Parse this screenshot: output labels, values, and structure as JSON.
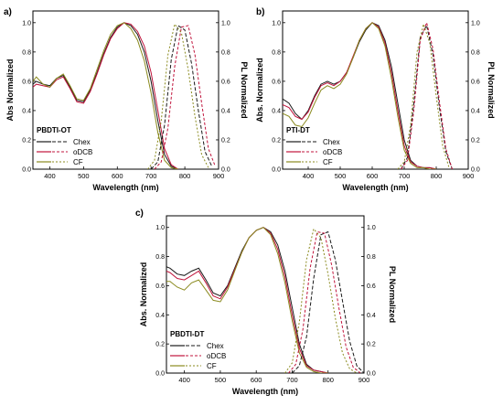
{
  "figure": {
    "colors": {
      "Chex": "#1a1a1a",
      "oDCB": "#c0143c",
      "CF": "#8a8a1e"
    },
    "legend_entries": [
      "Chex",
      "oDCB",
      "CF"
    ]
  },
  "chart_data": [
    {
      "panel_label": "a)",
      "type": "line",
      "title": "PBDTI-OT",
      "xlabel": "Wavelength (nm)",
      "ylabel_left": "Abs Normalized",
      "ylabel_right": "PL Normalized",
      "xlim": [
        350,
        900
      ],
      "ylim": [
        0,
        1.08
      ],
      "xticks": [
        400,
        500,
        600,
        700,
        800,
        900
      ],
      "yticks": [
        0.0,
        0.2,
        0.4,
        0.6,
        0.8,
        1.0
      ],
      "legend_position": "bottom-left",
      "grid": false,
      "series": [
        {
          "name": "Chex",
          "kind": "abs",
          "style": "solid",
          "x": [
            350,
            360,
            380,
            400,
            420,
            440,
            460,
            480,
            500,
            520,
            540,
            560,
            580,
            600,
            620,
            640,
            660,
            680,
            700,
            720,
            740,
            760,
            780
          ],
          "y": [
            0.58,
            0.6,
            0.58,
            0.57,
            0.62,
            0.64,
            0.56,
            0.47,
            0.46,
            0.54,
            0.66,
            0.79,
            0.9,
            0.97,
            1.0,
            0.98,
            0.92,
            0.8,
            0.6,
            0.33,
            0.1,
            0.02,
            0.0
          ]
        },
        {
          "name": "oDCB",
          "kind": "abs",
          "style": "solid",
          "x": [
            350,
            360,
            380,
            400,
            420,
            440,
            460,
            480,
            500,
            520,
            540,
            560,
            580,
            600,
            620,
            640,
            660,
            680,
            700,
            720,
            740,
            760,
            780
          ],
          "y": [
            0.56,
            0.58,
            0.57,
            0.56,
            0.61,
            0.63,
            0.55,
            0.46,
            0.45,
            0.53,
            0.65,
            0.78,
            0.89,
            0.96,
            1.0,
            0.99,
            0.94,
            0.84,
            0.66,
            0.4,
            0.14,
            0.03,
            0.0
          ]
        },
        {
          "name": "CF",
          "kind": "abs",
          "style": "solid",
          "x": [
            350,
            360,
            380,
            400,
            420,
            440,
            460,
            480,
            500,
            520,
            540,
            560,
            580,
            600,
            620,
            640,
            660,
            680,
            700,
            720,
            740,
            760,
            780
          ],
          "y": [
            0.6,
            0.63,
            0.58,
            0.56,
            0.62,
            0.65,
            0.57,
            0.48,
            0.47,
            0.55,
            0.68,
            0.81,
            0.92,
            0.98,
            1.0,
            0.96,
            0.88,
            0.74,
            0.52,
            0.25,
            0.06,
            0.01,
            0.0
          ]
        },
        {
          "name": "Chex",
          "kind": "pl",
          "style": "dashed",
          "x": [
            700,
            720,
            740,
            760,
            780,
            800,
            820,
            840,
            860,
            880
          ],
          "y": [
            0.0,
            0.05,
            0.3,
            0.75,
            0.98,
            0.95,
            0.72,
            0.4,
            0.12,
            0.02
          ]
        },
        {
          "name": "oDCB",
          "kind": "pl",
          "style": "dashed",
          "x": [
            710,
            730,
            750,
            770,
            790,
            810,
            830,
            850,
            870,
            890
          ],
          "y": [
            0.0,
            0.05,
            0.28,
            0.7,
            0.97,
            0.98,
            0.78,
            0.45,
            0.14,
            0.02
          ]
        },
        {
          "name": "CF",
          "kind": "pl",
          "style": "dashed",
          "x": [
            690,
            710,
            730,
            750,
            770,
            790,
            810,
            830,
            850,
            870
          ],
          "y": [
            0.0,
            0.06,
            0.33,
            0.78,
            0.99,
            0.93,
            0.68,
            0.36,
            0.1,
            0.01
          ]
        }
      ]
    },
    {
      "panel_label": "b)",
      "type": "line",
      "title": "PTI-DT",
      "xlabel": "Wavelength (nm)",
      "ylabel_left": "Abs. Normalized",
      "ylabel_right": "PL Normalized",
      "xlim": [
        320,
        900
      ],
      "ylim": [
        0,
        1.08
      ],
      "xticks": [
        400,
        500,
        600,
        700,
        800,
        900
      ],
      "yticks": [
        0.0,
        0.2,
        0.4,
        0.6,
        0.8,
        1.0
      ],
      "legend_position": "bottom-left",
      "grid": false,
      "series": [
        {
          "name": "Chex",
          "kind": "abs",
          "style": "solid",
          "x": [
            320,
            340,
            360,
            380,
            400,
            420,
            440,
            460,
            480,
            500,
            520,
            540,
            560,
            580,
            600,
            620,
            640,
            660,
            680,
            700,
            720,
            740,
            760,
            780,
            800
          ],
          "y": [
            0.48,
            0.45,
            0.38,
            0.34,
            0.4,
            0.5,
            0.58,
            0.6,
            0.58,
            0.6,
            0.66,
            0.76,
            0.87,
            0.95,
            1.0,
            0.98,
            0.88,
            0.7,
            0.45,
            0.2,
            0.06,
            0.02,
            0.01,
            0.01,
            0.0
          ]
        },
        {
          "name": "oDCB",
          "kind": "abs",
          "style": "solid",
          "x": [
            320,
            340,
            360,
            380,
            400,
            420,
            440,
            460,
            480,
            500,
            520,
            540,
            560,
            580,
            600,
            620,
            640,
            660,
            680,
            700,
            720,
            740,
            760,
            780,
            800
          ],
          "y": [
            0.44,
            0.42,
            0.36,
            0.34,
            0.39,
            0.49,
            0.57,
            0.59,
            0.57,
            0.6,
            0.66,
            0.77,
            0.88,
            0.96,
            1.0,
            0.97,
            0.86,
            0.66,
            0.4,
            0.16,
            0.05,
            0.02,
            0.01,
            0.01,
            0.0
          ]
        },
        {
          "name": "CF",
          "kind": "abs",
          "style": "solid",
          "x": [
            320,
            340,
            360,
            380,
            400,
            420,
            440,
            460,
            480,
            500,
            520,
            540,
            560,
            580,
            600,
            620,
            640,
            660,
            680,
            700,
            720,
            740,
            760,
            780,
            800
          ],
          "y": [
            0.38,
            0.36,
            0.3,
            0.29,
            0.35,
            0.45,
            0.54,
            0.57,
            0.55,
            0.58,
            0.65,
            0.76,
            0.88,
            0.96,
            1.0,
            0.96,
            0.84,
            0.62,
            0.36,
            0.13,
            0.04,
            0.01,
            0.01,
            0.0,
            0.0
          ]
        },
        {
          "name": "Chex",
          "kind": "pl",
          "style": "dashed",
          "x": [
            690,
            710,
            730,
            750,
            770,
            790,
            810,
            830,
            850
          ],
          "y": [
            0.0,
            0.08,
            0.45,
            0.9,
            0.98,
            0.78,
            0.42,
            0.12,
            0.0
          ]
        },
        {
          "name": "oDCB",
          "kind": "pl",
          "style": "dashed",
          "x": [
            690,
            710,
            730,
            750,
            770,
            790,
            810,
            830,
            850
          ],
          "y": [
            0.0,
            0.06,
            0.4,
            0.88,
            1.0,
            0.82,
            0.46,
            0.14,
            0.0
          ]
        },
        {
          "name": "CF",
          "kind": "pl",
          "style": "dashed",
          "x": [
            680,
            700,
            720,
            740,
            760,
            780,
            800,
            820,
            840
          ],
          "y": [
            0.0,
            0.05,
            0.3,
            0.8,
            0.99,
            0.86,
            0.5,
            0.16,
            0.01
          ]
        }
      ]
    },
    {
      "panel_label": "c)",
      "type": "line",
      "title": "PBDTI-DT",
      "xlabel": "Wavelength (nm)",
      "ylabel_left": "Abs. Normalized",
      "ylabel_right": "PL Normalized",
      "xlim": [
        350,
        900
      ],
      "ylim": [
        0,
        1.08
      ],
      "xticks": [
        400,
        500,
        600,
        700,
        800,
        900
      ],
      "yticks": [
        0.0,
        0.2,
        0.4,
        0.6,
        0.8,
        1.0
      ],
      "legend_position": "bottom-left",
      "grid": false,
      "series": [
        {
          "name": "Chex",
          "kind": "abs",
          "style": "solid",
          "x": [
            350,
            360,
            380,
            400,
            420,
            440,
            460,
            480,
            500,
            520,
            540,
            560,
            580,
            600,
            620,
            640,
            660,
            680,
            700,
            720,
            740,
            760,
            780,
            800
          ],
          "y": [
            0.73,
            0.72,
            0.68,
            0.67,
            0.7,
            0.72,
            0.64,
            0.55,
            0.53,
            0.6,
            0.72,
            0.84,
            0.93,
            0.98,
            1.0,
            0.97,
            0.88,
            0.7,
            0.45,
            0.2,
            0.06,
            0.02,
            0.01,
            0.0
          ]
        },
        {
          "name": "oDCB",
          "kind": "abs",
          "style": "solid",
          "x": [
            350,
            360,
            380,
            400,
            420,
            440,
            460,
            480,
            500,
            520,
            540,
            560,
            580,
            600,
            620,
            640,
            660,
            680,
            700,
            720,
            740,
            760,
            780,
            800
          ],
          "y": [
            0.7,
            0.69,
            0.65,
            0.64,
            0.67,
            0.7,
            0.62,
            0.53,
            0.51,
            0.59,
            0.71,
            0.83,
            0.93,
            0.98,
            1.0,
            0.96,
            0.85,
            0.66,
            0.4,
            0.17,
            0.05,
            0.02,
            0.01,
            0.0
          ]
        },
        {
          "name": "CF",
          "kind": "abs",
          "style": "solid",
          "x": [
            350,
            360,
            380,
            400,
            420,
            440,
            460,
            480,
            500,
            520,
            540,
            560,
            580,
            600,
            620,
            640,
            660,
            680,
            700,
            720,
            740,
            760,
            780,
            800
          ],
          "y": [
            0.63,
            0.63,
            0.59,
            0.57,
            0.62,
            0.64,
            0.57,
            0.5,
            0.49,
            0.57,
            0.7,
            0.83,
            0.93,
            0.98,
            1.0,
            0.95,
            0.82,
            0.62,
            0.36,
            0.14,
            0.04,
            0.01,
            0.0,
            0.0
          ]
        },
        {
          "name": "Chex",
          "kind": "pl",
          "style": "dashed",
          "x": [
            700,
            720,
            740,
            760,
            780,
            800,
            820,
            840,
            860,
            880,
            900
          ],
          "y": [
            0.0,
            0.05,
            0.25,
            0.65,
            0.95,
            0.97,
            0.78,
            0.5,
            0.22,
            0.05,
            0.0
          ]
        },
        {
          "name": "oDCB",
          "kind": "pl",
          "style": "dashed",
          "x": [
            690,
            710,
            730,
            750,
            770,
            790,
            810,
            830,
            850,
            870,
            890
          ],
          "y": [
            0.0,
            0.06,
            0.3,
            0.72,
            0.97,
            0.96,
            0.74,
            0.45,
            0.18,
            0.04,
            0.0
          ]
        },
        {
          "name": "CF",
          "kind": "pl",
          "style": "dashed",
          "x": [
            680,
            700,
            720,
            740,
            760,
            780,
            800,
            820,
            840,
            860,
            880
          ],
          "y": [
            0.0,
            0.07,
            0.35,
            0.78,
            0.99,
            0.93,
            0.68,
            0.38,
            0.14,
            0.03,
            0.0
          ]
        }
      ]
    }
  ]
}
